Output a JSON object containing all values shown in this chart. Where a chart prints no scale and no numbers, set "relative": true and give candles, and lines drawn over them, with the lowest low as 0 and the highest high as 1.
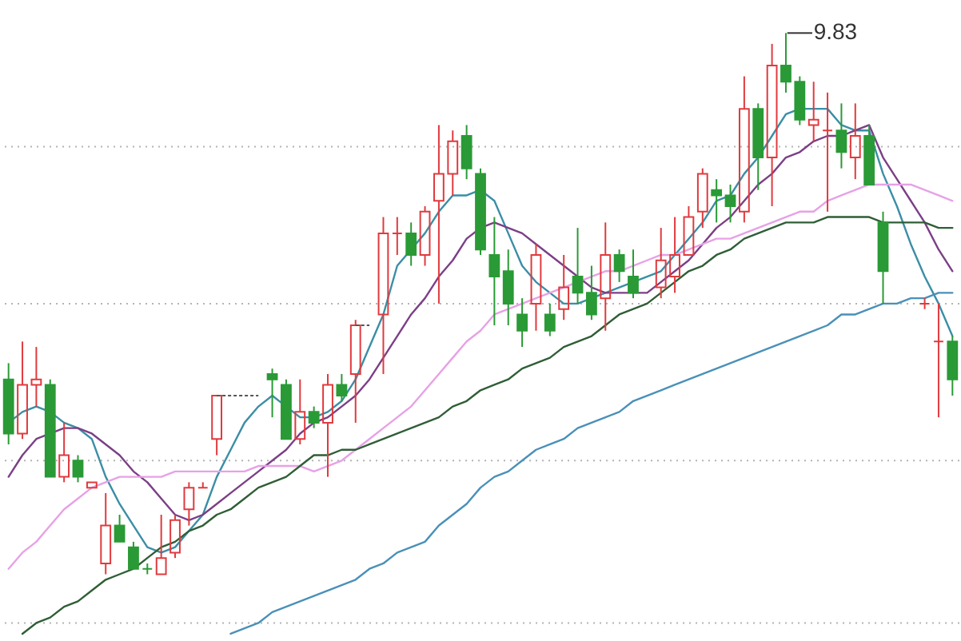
{
  "chart_data": {
    "type": "candlestick",
    "relative": true,
    "tick_labels": false,
    "categories": [
      null,
      null,
      null,
      null,
      null,
      null,
      null,
      null,
      null,
      null,
      null,
      null,
      null,
      null,
      null,
      null,
      null,
      null,
      null,
      null,
      null,
      null,
      null,
      null,
      null,
      null,
      null,
      null,
      null,
      null,
      null,
      null,
      null,
      null,
      null,
      null,
      null,
      null,
      null,
      null,
      null,
      null,
      null,
      null,
      null,
      null,
      null,
      null,
      null,
      null,
      null,
      null,
      null,
      null,
      null,
      null,
      null,
      null,
      null,
      null,
      null,
      null,
      null,
      null,
      null,
      null,
      null,
      null,
      null
    ],
    "ohlc": [
      [
        0.36,
        0.39,
        0.24,
        0.26
      ],
      [
        0.26,
        0.43,
        0.25,
        0.35
      ],
      [
        0.35,
        0.42,
        0.31,
        0.36
      ],
      [
        0.35,
        0.36,
        0.18,
        0.18
      ],
      [
        0.18,
        0.28,
        0.17,
        0.22
      ],
      [
        0.21,
        0.22,
        0.17,
        0.18
      ],
      [
        0.16,
        0.17,
        0.16,
        0.17
      ],
      [
        0.02,
        0.15,
        0,
        0.09
      ],
      [
        0.09,
        0.11,
        0.06,
        0.06
      ],
      [
        0.05,
        0.06,
        0.01,
        0.01
      ],
      [
        0.01,
        0.02,
        0,
        0.01
      ],
      [
        0,
        0.11,
        0,
        0.03
      ],
      [
        0.04,
        0.11,
        0.03,
        0.1
      ],
      [
        0.12,
        0.17,
        0.09,
        0.16
      ],
      [
        0.16,
        0.17,
        0.16,
        0.16
      ],
      [
        0.25,
        0.33,
        0.22,
        0.33
      ],
      null,
      null,
      null,
      [
        0.37,
        0.38,
        0.29,
        0.36
      ],
      [
        0.35,
        0.36,
        0.25,
        0.25
      ],
      [
        0.25,
        0.36,
        0.24,
        0.3
      ],
      [
        0.3,
        0.31,
        0.27,
        0.28
      ],
      [
        0.28,
        0.37,
        0.18,
        0.35
      ],
      [
        0.35,
        0.37,
        0.32,
        0.33
      ],
      [
        0.37,
        0.47,
        0.28,
        0.46
      ],
      null,
      [
        0.48,
        0.66,
        0.37,
        0.63
      ],
      [
        0.63,
        0.66,
        0.59,
        0.63
      ],
      [
        0.63,
        0.65,
        0.57,
        0.59
      ],
      [
        0.59,
        0.68,
        0.57,
        0.67
      ],
      [
        0.69,
        0.83,
        0.5,
        0.74
      ],
      [
        0.74,
        0.82,
        0.7,
        0.8
      ],
      [
        0.81,
        0.83,
        0.73,
        0.75
      ],
      [
        0.74,
        0.75,
        0.59,
        0.6
      ],
      [
        0.59,
        0.66,
        0.46,
        0.55
      ],
      [
        0.56,
        0.6,
        0.46,
        0.5
      ],
      [
        0.48,
        0.51,
        0.42,
        0.45
      ],
      [
        0.5,
        0.61,
        0.45,
        0.59
      ],
      [
        0.48,
        0.5,
        0.44,
        0.45
      ],
      [
        0.49,
        0.59,
        0.47,
        0.53
      ],
      [
        0.55,
        0.64,
        0.5,
        0.52
      ],
      [
        0.52,
        0.57,
        0.47,
        0.48
      ],
      [
        0.51,
        0.65,
        0.45,
        0.59
      ],
      [
        0.59,
        0.6,
        0.54,
        0.56
      ],
      [
        0.55,
        0.6,
        0.51,
        0.52
      ],
      null,
      [
        0.53,
        0.64,
        0.51,
        0.58
      ],
      [
        0.55,
        0.66,
        0.52,
        0.59
      ],
      [
        0.59,
        0.68,
        0.59,
        0.66
      ],
      [
        0.67,
        0.75,
        0.64,
        0.74
      ],
      [
        0.71,
        0.73,
        0.65,
        0.7
      ],
      [
        0.7,
        0.72,
        0.65,
        0.68
      ],
      [
        0.67,
        0.92,
        0.65,
        0.86
      ],
      [
        0.86,
        0.87,
        0.71,
        0.77
      ],
      [
        0.77,
        0.98,
        0.68,
        0.94
      ],
      [
        0.94,
        1,
        0.89,
        0.91
      ],
      [
        0.91,
        0.92,
        0.83,
        0.84
      ],
      [
        0.83,
        0.91,
        0.8,
        0.84
      ],
      [
        0.82,
        0.89,
        0.67,
        0.82
      ],
      [
        0.82,
        0.87,
        0.75,
        0.78
      ],
      [
        0.77,
        0.87,
        0.73,
        0.81
      ],
      [
        0.81,
        0.83,
        0.72,
        0.72
      ],
      [
        0.65,
        0.67,
        0.5,
        0.56
      ],
      null,
      null,
      [
        0.5,
        0.51,
        0.49,
        0.5
      ],
      [
        0.43,
        0.5,
        0.29,
        0.43
      ],
      [
        0.43,
        0.44,
        0.33,
        0.36
      ]
    ],
    "colors": [
      "#2a9a36",
      "#e03a3e",
      "#e03a3e",
      "#2a9a36",
      "#e03a3e",
      "#2a9a36",
      "#e03a3e",
      "#e03a3e",
      "#2a9a36",
      "#2a9a36",
      "#2a9a36",
      "#e03a3e",
      "#e03a3e",
      "#e03a3e",
      "#e03a3e",
      "#e03a3e",
      null,
      null,
      null,
      "#2a9a36",
      "#2a9a36",
      "#e03a3e",
      "#2a9a36",
      "#e03a3e",
      "#2a9a36",
      "#e03a3e",
      null,
      "#e03a3e",
      "#e03a3e",
      "#2a9a36",
      "#e03a3e",
      "#e03a3e",
      "#e03a3e",
      "#2a9a36",
      "#2a9a36",
      "#2a9a36",
      "#2a9a36",
      "#2a9a36",
      "#e03a3e",
      "#2a9a36",
      "#e03a3e",
      "#2a9a36",
      "#2a9a36",
      "#e03a3e",
      "#2a9a36",
      "#2a9a36",
      null,
      "#e03a3e",
      "#e03a3e",
      "#e03a3e",
      "#e03a3e",
      "#2a9a36",
      "#2a9a36",
      "#e03a3e",
      "#2a9a36",
      "#e03a3e",
      "#2a9a36",
      "#2a9a36",
      "#e03a3e",
      "#e03a3e",
      "#2a9a36",
      "#e03a3e",
      "#2a9a36",
      "#2a9a36",
      null,
      null,
      "#e03a3e",
      "#e03a3e",
      "#2a9a36"
    ],
    "series": [
      {
        "type": "line",
        "color": "#3b8ea5",
        "values": [
          0.28,
          0.3,
          0.31,
          0.3,
          0.28,
          0.27,
          0.25,
          0.18,
          0.13,
          0.09,
          0.05,
          0.04,
          0.05,
          0.08,
          0.11,
          0.18,
          0.23,
          0.28,
          0.31,
          0.33,
          0.31,
          0.29,
          0.29,
          0.3,
          0.32,
          0.36,
          0.42,
          0.48,
          0.57,
          0.6,
          0.63,
          0.67,
          0.7,
          0.7,
          0.71,
          0.69,
          0.63,
          0.57,
          0.54,
          0.52,
          0.5,
          0.5,
          0.51,
          0.52,
          0.53,
          0.54,
          0.55,
          0.56,
          0.59,
          0.62,
          0.65,
          0.69,
          0.7,
          0.74,
          0.77,
          0.81,
          0.85,
          0.86,
          0.86,
          0.86,
          0.83,
          0.82,
          0.82,
          0.74,
          0.68,
          0.61,
          0.55,
          0.5,
          0.44
        ]
      },
      {
        "type": "line",
        "color": "#7b3f86",
        "values": [
          0.18,
          0.22,
          0.25,
          0.26,
          0.27,
          0.27,
          0.26,
          0.24,
          0.22,
          0.19,
          0.17,
          0.14,
          0.11,
          0.1,
          0.11,
          0.13,
          0.15,
          0.17,
          0.19,
          0.21,
          0.23,
          0.26,
          0.28,
          0.29,
          0.31,
          0.33,
          0.36,
          0.4,
          0.44,
          0.48,
          0.51,
          0.55,
          0.58,
          0.62,
          0.64,
          0.65,
          0.64,
          0.63,
          0.61,
          0.59,
          0.57,
          0.55,
          0.53,
          0.52,
          0.52,
          0.52,
          0.52,
          0.54,
          0.56,
          0.58,
          0.61,
          0.64,
          0.66,
          0.69,
          0.72,
          0.74,
          0.77,
          0.78,
          0.8,
          0.81,
          0.81,
          0.82,
          0.83,
          0.77,
          0.73,
          0.69,
          0.65,
          0.6,
          0.56
        ]
      },
      {
        "type": "line",
        "color": "#e7a1e6",
        "values": [
          0.01,
          0.04,
          0.06,
          0.09,
          0.12,
          0.14,
          0.16,
          0.17,
          0.18,
          0.18,
          0.18,
          0.18,
          0.19,
          0.19,
          0.19,
          0.19,
          0.19,
          0.19,
          0.2,
          0.2,
          0.2,
          0.2,
          0.19,
          0.2,
          0.21,
          0.23,
          0.25,
          0.27,
          0.29,
          0.31,
          0.34,
          0.37,
          0.4,
          0.43,
          0.45,
          0.48,
          0.49,
          0.5,
          0.51,
          0.52,
          0.53,
          0.54,
          0.55,
          0.56,
          0.56,
          0.57,
          0.58,
          0.59,
          0.59,
          0.6,
          0.61,
          0.62,
          0.62,
          0.63,
          0.64,
          0.65,
          0.66,
          0.67,
          0.67,
          0.69,
          0.7,
          0.71,
          0.72,
          0.72,
          0.72,
          0.72,
          0.71,
          0.7,
          0.69
        ]
      },
      {
        "type": "line",
        "color": "#2f5e36",
        "values": [
          null,
          -0.11,
          -0.09,
          -0.08,
          -0.06,
          -0.05,
          -0.03,
          -0.01,
          0,
          0.01,
          0.03,
          0.05,
          0.06,
          0.08,
          0.09,
          0.11,
          0.12,
          0.14,
          0.16,
          0.17,
          0.18,
          0.2,
          0.22,
          0.22,
          0.23,
          0.23,
          0.24,
          0.25,
          0.26,
          0.27,
          0.28,
          0.29,
          0.31,
          0.32,
          0.34,
          0.35,
          0.36,
          0.38,
          0.39,
          0.4,
          0.42,
          0.43,
          0.44,
          0.46,
          0.48,
          0.49,
          0.5,
          0.52,
          0.54,
          0.56,
          0.57,
          0.59,
          0.6,
          0.62,
          0.63,
          0.64,
          0.65,
          0.65,
          0.65,
          0.66,
          0.66,
          0.66,
          0.66,
          0.65,
          0.65,
          0.65,
          0.65,
          0.64,
          0.64
        ]
      },
      {
        "type": "line",
        "color": "#4a90b8",
        "values": [
          null,
          null,
          null,
          null,
          null,
          null,
          null,
          null,
          null,
          null,
          null,
          null,
          null,
          null,
          null,
          null,
          -0.11,
          -0.1,
          -0.09,
          -0.07,
          -0.06,
          -0.05,
          -0.04,
          -0.03,
          -0.02,
          -0.01,
          0.01,
          0.02,
          0.04,
          0.05,
          0.06,
          0.09,
          0.11,
          0.13,
          0.16,
          0.18,
          0.19,
          0.21,
          0.23,
          0.24,
          0.25,
          0.27,
          0.28,
          0.29,
          0.3,
          0.32,
          0.33,
          0.34,
          0.35,
          0.36,
          0.37,
          0.38,
          0.39,
          0.4,
          0.41,
          0.42,
          0.43,
          0.44,
          0.45,
          0.46,
          0.48,
          0.48,
          0.49,
          0.5,
          0.5,
          0.51,
          0.51,
          0.52,
          0.52
        ]
      },
      {
        "type": "line",
        "color": "#555555",
        "line_style": "dashed",
        "values": [
          null,
          null,
          null,
          null,
          null,
          null,
          null,
          null,
          null,
          null,
          null,
          null,
          null,
          null,
          null,
          0.33,
          0.33,
          0.33,
          0.33,
          null,
          null,
          null,
          null,
          null,
          null,
          null,
          null,
          null,
          null,
          null,
          null,
          null,
          null,
          null,
          null,
          null,
          null,
          null,
          null,
          null,
          null,
          null,
          null,
          null,
          null,
          null,
          null,
          null,
          null,
          null,
          null,
          null,
          null,
          null,
          null,
          null,
          null,
          null,
          null,
          null,
          null,
          null,
          null,
          null,
          null,
          null,
          null,
          null,
          null
        ]
      },
      {
        "type": "line",
        "color": "#555555",
        "line_style": "dashed",
        "values": [
          null,
          null,
          null,
          null,
          null,
          null,
          null,
          null,
          null,
          null,
          null,
          null,
          null,
          null,
          null,
          null,
          null,
          null,
          null,
          null,
          null,
          null,
          null,
          null,
          null,
          0.46,
          0.46,
          null,
          null,
          null,
          null,
          null,
          null,
          null,
          null,
          null,
          null,
          null,
          null,
          null,
          null,
          null,
          null,
          null,
          null,
          null,
          null,
          null,
          null,
          null,
          null,
          null,
          null,
          null,
          null,
          null,
          null,
          null,
          null,
          null,
          null,
          null,
          null,
          null,
          null,
          null,
          null,
          null,
          null
        ]
      }
    ],
    "annotations": [
      "9.83"
    ],
    "ref_lines": [
      {
        "axis": "y",
        "value": 0.79,
        "color": "#b4b4b4",
        "line_style": "dotted"
      },
      {
        "axis": "y",
        "value": 0.5,
        "color": "#b4b4b4",
        "line_style": "dotted"
      },
      {
        "axis": "y",
        "value": 0.21,
        "color": "#b4b4b4",
        "line_style": "dotted"
      },
      {
        "axis": "y",
        "value": -0.09,
        "color": "#b4b4b4",
        "line_style": "dotted"
      }
    ]
  }
}
